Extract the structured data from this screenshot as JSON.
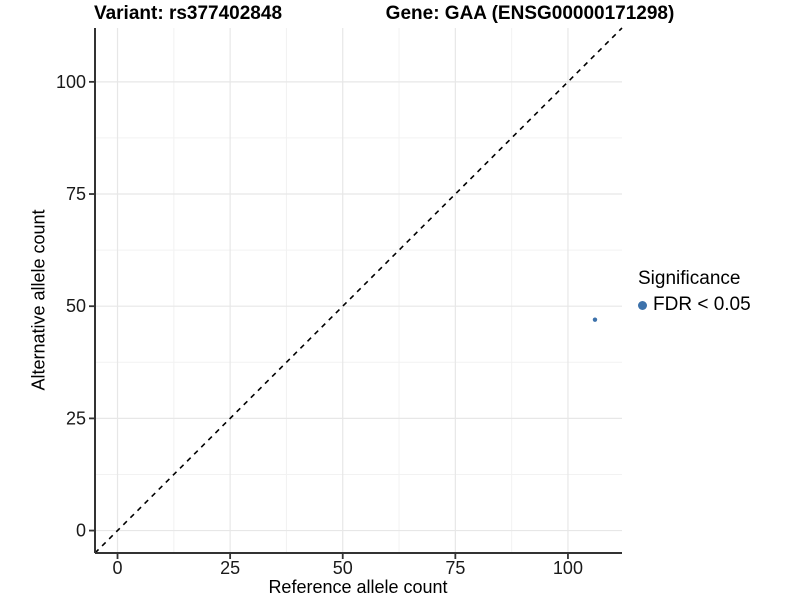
{
  "chart_data": {
    "type": "scatter",
    "title_variant": "Variant: rs377402848",
    "title_gene": "Gene: GAA (ENSG00000171298)",
    "xlabel": "Reference allele count",
    "ylabel": "Alternative allele count",
    "xlim": [
      -5,
      112
    ],
    "ylim": [
      -5,
      112
    ],
    "xticks": [
      0,
      25,
      50,
      75,
      100
    ],
    "yticks": [
      0,
      25,
      50,
      75,
      100
    ],
    "minor_ticks": [
      12.5,
      37.5,
      62.5,
      87.5
    ],
    "grid": true,
    "reference_line": {
      "type": "identity",
      "style": "dashed",
      "color": "#000000"
    },
    "points": [
      {
        "x": 106,
        "y": 47,
        "series": "FDR < 0.05",
        "color": "#3d72ab",
        "radius": 2.2
      }
    ],
    "legend": {
      "title": "Significance",
      "position": "right",
      "items": [
        {
          "label": "FDR < 0.05",
          "color": "#3d72ab"
        }
      ]
    },
    "colors": {
      "point": "#3d72ab",
      "grid_major": "#e7e7e7",
      "grid_minor": "#f2f2f2",
      "axis": "#333333",
      "tick_text": "#1a1a1a",
      "background": "#ffffff"
    }
  }
}
